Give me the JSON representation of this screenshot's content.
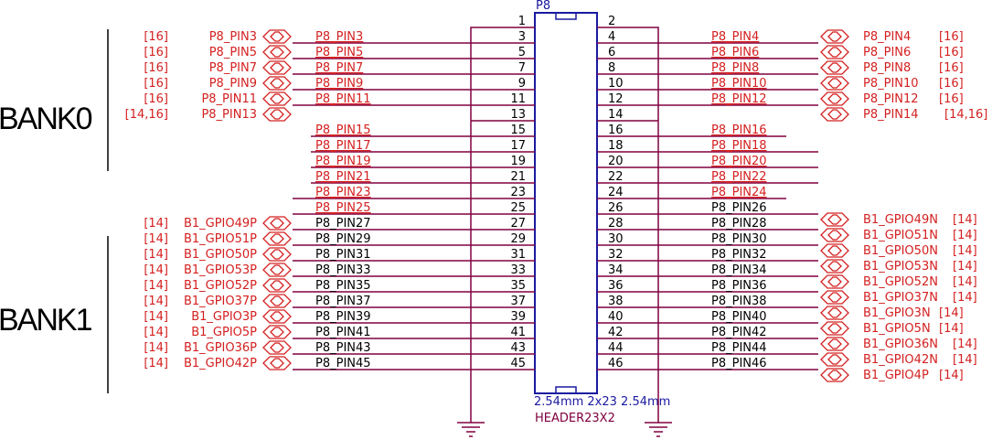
{
  "header": {
    "ref": "P8",
    "footprint": "2.54mm 2x23 2.54mm",
    "part": "HEADER23X2"
  },
  "banks": [
    {
      "label": "BANK0"
    },
    {
      "label": "BANK1"
    }
  ],
  "pins": [
    {
      "num": "1",
      "net": ""
    },
    {
      "num": "2",
      "net": ""
    },
    {
      "num": "3",
      "net": "P8_PIN3"
    },
    {
      "num": "4",
      "net": "P8_PIN4"
    },
    {
      "num": "5",
      "net": "P8_PIN5"
    },
    {
      "num": "6",
      "net": "P8_PIN6"
    },
    {
      "num": "7",
      "net": "P8_PIN7"
    },
    {
      "num": "8",
      "net": "P8_PIN8"
    },
    {
      "num": "9",
      "net": "P8_PIN9"
    },
    {
      "num": "10",
      "net": "P8_PIN10"
    },
    {
      "num": "11",
      "net": "P8_PIN11"
    },
    {
      "num": "12",
      "net": "P8_PIN12"
    },
    {
      "num": "13",
      "net": ""
    },
    {
      "num": "14",
      "net": ""
    },
    {
      "num": "15",
      "net": "P8_PIN15"
    },
    {
      "num": "16",
      "net": "P8_PIN16"
    },
    {
      "num": "17",
      "net": "P8_PIN17"
    },
    {
      "num": "18",
      "net": "P8_PIN18"
    },
    {
      "num": "19",
      "net": "P8_PIN19"
    },
    {
      "num": "20",
      "net": "P8_PIN20"
    },
    {
      "num": "21",
      "net": "P8_PIN21"
    },
    {
      "num": "22",
      "net": "P8_PIN22"
    },
    {
      "num": "23",
      "net": "P8_PIN23"
    },
    {
      "num": "24",
      "net": "P8_PIN24"
    },
    {
      "num": "25",
      "net": "P8_PIN25"
    },
    {
      "num": "26",
      "net": "P8_PIN26"
    },
    {
      "num": "27",
      "net": "P8_PIN27"
    },
    {
      "num": "28",
      "net": "P8_PIN28"
    },
    {
      "num": "29",
      "net": "P8_PIN29"
    },
    {
      "num": "30",
      "net": "P8_PIN30"
    },
    {
      "num": "31",
      "net": "P8_PIN31"
    },
    {
      "num": "32",
      "net": "P8_PIN32"
    },
    {
      "num": "33",
      "net": "P8_PIN33"
    },
    {
      "num": "34",
      "net": "P8_PIN34"
    },
    {
      "num": "35",
      "net": "P8_PIN35"
    },
    {
      "num": "36",
      "net": "P8_PIN36"
    },
    {
      "num": "37",
      "net": "P8_PIN37"
    },
    {
      "num": "38",
      "net": "P8_PIN38"
    },
    {
      "num": "39",
      "net": "P8_PIN39"
    },
    {
      "num": "40",
      "net": "P8_PIN40"
    },
    {
      "num": "41",
      "net": "P8_PIN41"
    },
    {
      "num": "42",
      "net": "P8_PIN42"
    },
    {
      "num": "43",
      "net": "P8_PIN43"
    },
    {
      "num": "44",
      "net": "P8_PIN44"
    },
    {
      "num": "45",
      "net": "P8_PIN45"
    },
    {
      "num": "46",
      "net": "P8_PIN46"
    }
  ],
  "left_ports": [
    {
      "name": "P8_PIN3",
      "ref": "[16]"
    },
    {
      "name": "P8_PIN5",
      "ref": "[16]"
    },
    {
      "name": "P8_PIN7",
      "ref": "[16]"
    },
    {
      "name": "P8_PIN9",
      "ref": "[16]"
    },
    {
      "name": "P8_PIN11",
      "ref": "[16]"
    },
    {
      "name": "P8_PIN13",
      "ref": "[14,16]"
    },
    {
      "name": "B1_GPIO49P",
      "ref": "[14]"
    },
    {
      "name": "B1_GPIO51P",
      "ref": "[14]"
    },
    {
      "name": "B1_GPIO50P",
      "ref": "[14]"
    },
    {
      "name": "B1_GPIO53P",
      "ref": "[14]"
    },
    {
      "name": "B1_GPIO52P",
      "ref": "[14]"
    },
    {
      "name": "B1_GPIO37P",
      "ref": "[14]"
    },
    {
      "name": "B1_GPIO3P",
      "ref": "[14]"
    },
    {
      "name": "B1_GPIO5P",
      "ref": "[14]"
    },
    {
      "name": "B1_GPIO36P",
      "ref": "[14]"
    },
    {
      "name": "B1_GPIO42P",
      "ref": "[14]"
    }
  ],
  "right_ports": [
    {
      "name": "P8_PIN4",
      "ref": "[16]"
    },
    {
      "name": "P8_PIN6",
      "ref": "[16]"
    },
    {
      "name": "P8_PIN8",
      "ref": "[16]"
    },
    {
      "name": "P8_PIN10",
      "ref": "[16]"
    },
    {
      "name": "P8_PIN12",
      "ref": "[16]"
    },
    {
      "name": "P8_PIN14",
      "ref": "[14,16]"
    },
    {
      "name": "B1_GPIO49N",
      "ref": "[14]"
    },
    {
      "name": "B1_GPIO51N",
      "ref": "[14]"
    },
    {
      "name": "B1_GPIO50N",
      "ref": "[14]"
    },
    {
      "name": "B1_GPIO53N",
      "ref": "[14]"
    },
    {
      "name": "B1_GPIO52N",
      "ref": "[14]"
    },
    {
      "name": "B1_GPIO37N",
      "ref": "[14]"
    },
    {
      "name": "B1_GPIO3N",
      "ref": "[14]"
    },
    {
      "name": "B1_GPIO5N",
      "ref": "[14]"
    },
    {
      "name": "B1_GPIO36N",
      "ref": "[14]"
    },
    {
      "name": "B1_GPIO42N",
      "ref": "[14]"
    },
    {
      "name": "B1_GPIO4P",
      "ref": "[14]"
    }
  ],
  "colors": {
    "wire": "#800040",
    "net_label": "#d42020",
    "body": "#1a1aa0",
    "text": "#000000"
  }
}
